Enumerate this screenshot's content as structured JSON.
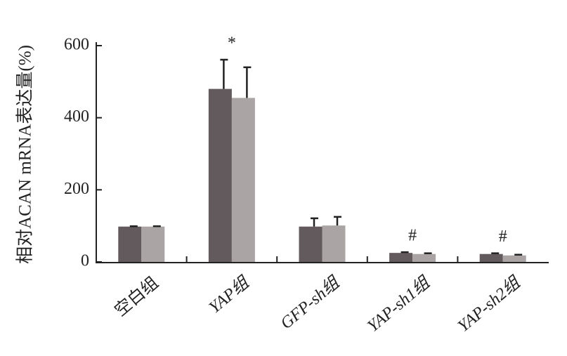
{
  "chart_data": {
    "type": "bar",
    "y_label": "相对ACAN mRNA表达量(%)",
    "categories": [
      "空白组",
      "YAP组",
      "GFP-sh组",
      "YAP-sh1组",
      "YAP-sh2组"
    ],
    "series": [
      {
        "color": "#625a5c",
        "values": [
          98,
          480,
          98,
          25,
          22
        ],
        "errors": [
          1,
          81,
          23,
          2,
          2
        ]
      },
      {
        "color": "#aba4a5",
        "values": [
          98,
          455,
          101,
          22,
          18
        ],
        "errors": [
          1,
          85,
          24,
          2,
          2
        ]
      }
    ],
    "annotations": [
      null,
      "*",
      null,
      "#",
      "#"
    ],
    "ylim": [
      0,
      600
    ],
    "yticks": [
      0,
      200,
      400,
      600
    ]
  }
}
